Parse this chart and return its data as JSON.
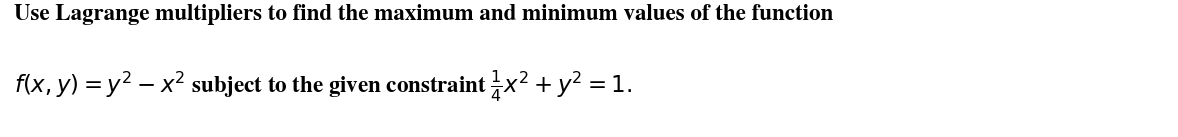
{
  "line1": "Use Lagrange multipliers to find the maximum and minimum values of the function",
  "line2_pre": "$f(x,y) = y^2 - x^2$ subject to the given constraint $\\frac{1}{4}x^2 + y^2 = 1.$",
  "bg_color": "#ffffff",
  "text_color": "#000000",
  "fontsize": 16.5,
  "fig_width": 11.78,
  "fig_height": 1.37,
  "dpi": 100
}
